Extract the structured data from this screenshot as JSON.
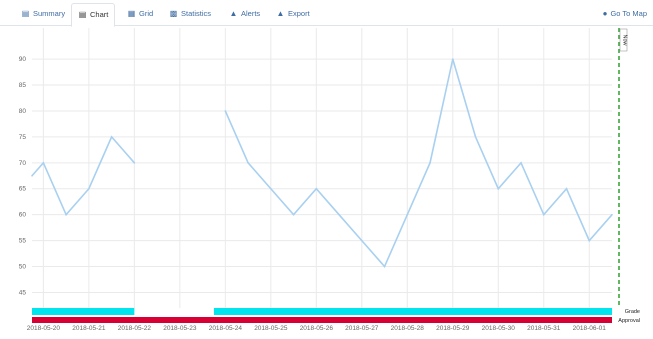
{
  "tabs": [
    {
      "label": "Summary",
      "icon": "summary-icon"
    },
    {
      "label": "Chart",
      "icon": "chart-icon"
    },
    {
      "label": "Grid",
      "icon": "grid-icon"
    },
    {
      "label": "Statistics",
      "icon": "statistics-icon"
    },
    {
      "label": "Alerts",
      "icon": "alert-icon"
    },
    {
      "label": "Export",
      "icon": "export-icon"
    }
  ],
  "active_tab": "Chart",
  "goto_map": {
    "label": "Go To Map",
    "icon": "globe-icon"
  },
  "colors": {
    "line": "#a8d0f0",
    "grade_bar": "#00e5ee",
    "approval_bar": "#d80032",
    "marker": "#3aa63a",
    "grid": "#eaeaea"
  },
  "chart_data": {
    "type": "line",
    "xlabel": "",
    "ylabel": "",
    "ylim": [
      42,
      96
    ],
    "grid": true,
    "y_ticks": [
      45,
      50,
      55,
      60,
      65,
      70,
      75,
      80,
      85,
      90
    ],
    "x_tick_labels": [
      "2018-05-20",
      "2018-05-21",
      "2018-05-22",
      "2018-05-23",
      "2018-05-24",
      "2018-05-25",
      "2018-05-26",
      "2018-05-27",
      "2018-05-28",
      "2018-05-29",
      "2018-05-30",
      "2018-05-31",
      "2018-06-01"
    ],
    "series": [
      {
        "points": [
          {
            "x": "2018-05-19 18:00",
            "y": 67.5
          },
          {
            "x": "2018-05-20 00:00",
            "y": 70
          },
          {
            "x": "2018-05-20 12:00",
            "y": 60
          },
          {
            "x": "2018-05-21 00:00",
            "y": 65
          },
          {
            "x": "2018-05-21 12:00",
            "y": 75
          },
          {
            "x": "2018-05-22 00:00",
            "y": 70
          },
          {
            "x": "2018-05-23 12:00",
            "y": null
          },
          {
            "x": "2018-05-24 00:00",
            "y": 80
          },
          {
            "x": "2018-05-24 12:00",
            "y": 70
          },
          {
            "x": "2018-05-25 00:00",
            "y": 65
          },
          {
            "x": "2018-05-25 12:00",
            "y": 60
          },
          {
            "x": "2018-05-26 00:00",
            "y": 65
          },
          {
            "x": "2018-05-26 12:00",
            "y": 60
          },
          {
            "x": "2018-05-27 00:00",
            "y": 55
          },
          {
            "x": "2018-05-27 12:00",
            "y": 50
          },
          {
            "x": "2018-05-28 00:00",
            "y": 60
          },
          {
            "x": "2018-05-28 12:00",
            "y": 70
          },
          {
            "x": "2018-05-29 00:00",
            "y": 90
          },
          {
            "x": "2018-05-29 12:00",
            "y": 75
          },
          {
            "x": "2018-05-30 00:00",
            "y": 65
          },
          {
            "x": "2018-05-30 12:00",
            "y": 70
          },
          {
            "x": "2018-05-31 00:00",
            "y": 60
          },
          {
            "x": "2018-05-31 12:00",
            "y": 65
          },
          {
            "x": "2018-06-01 00:00",
            "y": 55
          },
          {
            "x": "2018-06-01 12:00",
            "y": 60
          }
        ]
      }
    ],
    "bars": [
      {
        "name": "Grade",
        "segments": [
          [
            "2018-05-19 18:00",
            "2018-05-22 00:00"
          ],
          [
            "2018-05-23 18:00",
            "2018-06-01 12:00"
          ]
        ]
      },
      {
        "name": "Approval",
        "segments": [
          [
            "2018-05-19 18:00",
            "2018-06-01 12:00"
          ]
        ]
      }
    ],
    "marker_label": "Now"
  }
}
